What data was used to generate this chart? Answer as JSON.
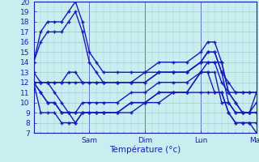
{
  "xlabel": "Température (°c)",
  "xlim": [
    0,
    96
  ],
  "ylim": [
    7,
    20
  ],
  "yticks": [
    7,
    8,
    9,
    10,
    11,
    12,
    13,
    14,
    15,
    16,
    17,
    18,
    19,
    20
  ],
  "xtick_positions": [
    24,
    48,
    72,
    96
  ],
  "xtick_labels": [
    "Sam",
    "Dim",
    "Lun",
    "Mar"
  ],
  "bg_color": "#c8eef0",
  "grid_color": "#9fc0cc",
  "line_color": "#1a1ab8",
  "line_width": 1.0,
  "marker": "+",
  "marker_size": 3.5,
  "marker_ew": 1.0,
  "lines": [
    [
      0,
      14,
      3,
      17,
      6,
      18,
      9,
      18,
      12,
      18,
      15,
      19,
      18,
      20,
      21,
      18,
      24,
      15,
      27,
      14,
      30,
      13,
      36,
      13,
      42,
      13,
      48,
      13,
      54,
      14,
      60,
      14,
      66,
      14,
      72,
      15,
      75,
      16,
      78,
      16,
      81,
      14,
      84,
      11,
      87,
      10,
      90,
      9,
      93,
      9,
      96,
      11
    ],
    [
      0,
      14,
      3,
      16,
      6,
      17,
      9,
      17,
      12,
      17,
      15,
      18,
      18,
      19,
      21,
      17,
      24,
      14,
      27,
      13,
      30,
      12,
      36,
      12,
      42,
      12,
      48,
      13,
      54,
      13,
      60,
      13,
      66,
      13,
      72,
      14,
      75,
      15,
      78,
      15,
      81,
      13,
      84,
      10,
      87,
      9,
      90,
      9,
      93,
      9,
      96,
      10
    ],
    [
      0,
      13,
      3,
      12,
      6,
      12,
      9,
      11,
      12,
      10,
      15,
      9,
      18,
      9,
      21,
      10,
      24,
      10,
      27,
      10,
      30,
      10,
      36,
      10,
      42,
      11,
      48,
      11,
      54,
      12,
      60,
      12,
      66,
      12,
      72,
      13,
      75,
      14,
      78,
      14,
      81,
      14,
      84,
      11,
      87,
      10,
      90,
      9,
      93,
      9,
      96,
      9
    ],
    [
      0,
      12,
      3,
      11,
      6,
      10,
      9,
      10,
      12,
      9,
      15,
      9,
      18,
      8,
      21,
      9,
      24,
      9,
      27,
      9,
      30,
      9,
      36,
      9,
      42,
      10,
      48,
      10,
      54,
      11,
      60,
      11,
      66,
      11,
      72,
      13,
      75,
      13,
      78,
      11,
      81,
      11,
      84,
      9,
      87,
      8,
      90,
      8,
      93,
      8,
      96,
      7
    ],
    [
      0,
      12,
      3,
      11,
      6,
      10,
      9,
      10,
      12,
      9,
      15,
      9,
      18,
      9,
      21,
      9,
      24,
      9,
      27,
      9,
      30,
      9,
      36,
      9,
      42,
      10,
      48,
      10,
      54,
      11,
      60,
      11,
      66,
      11,
      72,
      13,
      75,
      13,
      78,
      13,
      81,
      10,
      84,
      10,
      87,
      9,
      90,
      9,
      93,
      9,
      96,
      9
    ],
    [
      0,
      12,
      3,
      12,
      6,
      12,
      9,
      12,
      12,
      12,
      15,
      12,
      18,
      12,
      21,
      12,
      24,
      12,
      27,
      12,
      30,
      12,
      36,
      12,
      42,
      12,
      48,
      12,
      54,
      13,
      60,
      13,
      66,
      13,
      72,
      14,
      75,
      14,
      78,
      14,
      81,
      12,
      84,
      11,
      87,
      11,
      90,
      11,
      93,
      11,
      96,
      11
    ],
    [
      0,
      12,
      3,
      12,
      6,
      12,
      9,
      12,
      12,
      12,
      15,
      13,
      18,
      13,
      21,
      12,
      24,
      12,
      27,
      12,
      30,
      12,
      36,
      12,
      42,
      12,
      48,
      12,
      54,
      13,
      60,
      13,
      66,
      13,
      72,
      14,
      75,
      15,
      78,
      15,
      81,
      13,
      84,
      12,
      87,
      11,
      90,
      11,
      93,
      11,
      96,
      11
    ],
    [
      0,
      12,
      3,
      9,
      6,
      9,
      9,
      9,
      12,
      8,
      15,
      8,
      18,
      8,
      21,
      9,
      24,
      9,
      27,
      9,
      30,
      9,
      36,
      9,
      42,
      9,
      48,
      10,
      54,
      10,
      60,
      11,
      66,
      11,
      72,
      11,
      75,
      11,
      78,
      11,
      81,
      11,
      84,
      9,
      87,
      8,
      90,
      8,
      93,
      8,
      96,
      8
    ]
  ]
}
